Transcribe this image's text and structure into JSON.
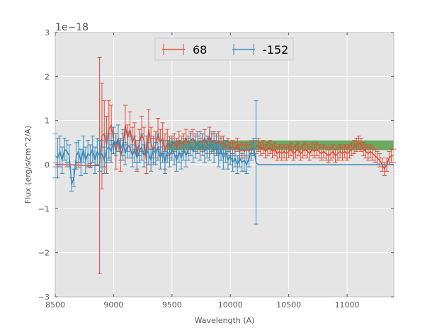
{
  "chart_data": {
    "type": "line",
    "title": "",
    "xlabel": "Wavelength (A)",
    "ylabel": "Flux (erg/s/cm^2/A)",
    "y_exponent_label": "1e−18",
    "xlim": [
      8500,
      11400
    ],
    "ylim": [
      -3,
      3
    ],
    "x_ticks": [
      8500,
      9000,
      9500,
      10000,
      10500,
      11000
    ],
    "x_tick_labels": [
      "8500",
      "9000",
      "9500",
      "10000",
      "10500",
      "11000"
    ],
    "y_ticks": [
      -3,
      -2,
      -1,
      0,
      1,
      2,
      3
    ],
    "y_tick_labels": [
      "−3",
      "−2",
      "−1",
      "0",
      "1",
      "2",
      "3"
    ],
    "grid": true,
    "legend_position": "upper-center",
    "band": {
      "x": [
        9460,
        11400
      ],
      "y": [
        0.33,
        0.55
      ],
      "color": "#4a9a3f"
    },
    "series": [
      {
        "name": "68",
        "color": "#e24a33",
        "points": [
          [
            8500,
            0.0,
            0.05
          ],
          [
            8600,
            0.0,
            0.05
          ],
          [
            8700,
            -0.01,
            0.05
          ],
          [
            8800,
            -0.02,
            0.05
          ],
          [
            8880,
            -0.02,
            2.45
          ],
          [
            8900,
            0.65,
            1.2
          ],
          [
            8920,
            0.7,
            0.75
          ],
          [
            8940,
            0.45,
            0.65
          ],
          [
            8960,
            0.8,
            0.65
          ],
          [
            8980,
            0.9,
            0.45
          ],
          [
            9000,
            0.55,
            0.3
          ],
          [
            9020,
            0.3,
            0.4
          ],
          [
            9040,
            0.6,
            0.3
          ],
          [
            9060,
            0.2,
            0.35
          ],
          [
            9080,
            0.4,
            0.3
          ],
          [
            9100,
            0.9,
            0.45
          ],
          [
            9120,
            0.6,
            0.3
          ],
          [
            9140,
            0.8,
            0.4
          ],
          [
            9160,
            0.5,
            0.35
          ],
          [
            9180,
            0.65,
            0.3
          ],
          [
            9200,
            0.2,
            0.35
          ],
          [
            9220,
            0.5,
            0.3
          ],
          [
            9240,
            0.7,
            0.4
          ],
          [
            9260,
            0.55,
            0.3
          ],
          [
            9280,
            0.1,
            0.3
          ],
          [
            9300,
            0.8,
            0.45
          ],
          [
            9320,
            0.5,
            0.35
          ],
          [
            9340,
            0.3,
            0.3
          ],
          [
            9360,
            0.45,
            0.3
          ],
          [
            9380,
            0.7,
            0.35
          ],
          [
            9400,
            0.5,
            0.3
          ],
          [
            9420,
            0.6,
            0.35
          ],
          [
            9440,
            0.3,
            0.4
          ],
          [
            9460,
            0.5,
            0.3
          ],
          [
            9480,
            0.4,
            0.25
          ],
          [
            9500,
            0.45,
            0.2
          ],
          [
            9520,
            0.5,
            0.2
          ],
          [
            9540,
            0.4,
            0.2
          ],
          [
            9560,
            0.55,
            0.2
          ],
          [
            9580,
            0.45,
            0.2
          ],
          [
            9600,
            0.5,
            0.2
          ],
          [
            9620,
            0.6,
            0.2
          ],
          [
            9640,
            0.45,
            0.2
          ],
          [
            9660,
            0.55,
            0.2
          ],
          [
            9680,
            0.6,
            0.2
          ],
          [
            9700,
            0.5,
            0.2
          ],
          [
            9720,
            0.45,
            0.2
          ],
          [
            9740,
            0.55,
            0.2
          ],
          [
            9760,
            0.5,
            0.2
          ],
          [
            9780,
            0.6,
            0.2
          ],
          [
            9800,
            0.45,
            0.2
          ],
          [
            9820,
            0.65,
            0.2
          ],
          [
            9840,
            0.5,
            0.2
          ],
          [
            9860,
            0.55,
            0.2
          ],
          [
            9880,
            0.45,
            0.2
          ],
          [
            9900,
            0.55,
            0.2
          ],
          [
            9920,
            0.45,
            0.2
          ],
          [
            9940,
            0.5,
            0.15
          ],
          [
            9960,
            0.4,
            0.15
          ],
          [
            9980,
            0.45,
            0.15
          ],
          [
            10000,
            0.35,
            0.15
          ],
          [
            10020,
            0.4,
            0.15
          ],
          [
            10040,
            0.35,
            0.15
          ],
          [
            10060,
            0.45,
            0.15
          ],
          [
            10080,
            0.3,
            0.15
          ],
          [
            10100,
            0.35,
            0.15
          ],
          [
            10120,
            0.3,
            0.15
          ],
          [
            10140,
            0.35,
            0.15
          ],
          [
            10160,
            0.3,
            0.15
          ],
          [
            10180,
            0.4,
            0.15
          ],
          [
            10200,
            0.35,
            0.15
          ],
          [
            10220,
            0.4,
            0.15
          ],
          [
            10240,
            0.45,
            0.15
          ],
          [
            10260,
            0.35,
            0.15
          ],
          [
            10280,
            0.4,
            0.15
          ],
          [
            10300,
            0.3,
            0.15
          ],
          [
            10320,
            0.35,
            0.15
          ],
          [
            10340,
            0.4,
            0.15
          ],
          [
            10360,
            0.3,
            0.15
          ],
          [
            10380,
            0.35,
            0.15
          ],
          [
            10400,
            0.25,
            0.15
          ],
          [
            10420,
            0.3,
            0.15
          ],
          [
            10440,
            0.25,
            0.15
          ],
          [
            10460,
            0.3,
            0.15
          ],
          [
            10480,
            0.25,
            0.15
          ],
          [
            10500,
            0.3,
            0.15
          ],
          [
            10520,
            0.35,
            0.15
          ],
          [
            10540,
            0.25,
            0.15
          ],
          [
            10560,
            0.3,
            0.15
          ],
          [
            10580,
            0.35,
            0.15
          ],
          [
            10600,
            0.25,
            0.15
          ],
          [
            10620,
            0.3,
            0.15
          ],
          [
            10640,
            0.35,
            0.15
          ],
          [
            10660,
            0.3,
            0.15
          ],
          [
            10680,
            0.25,
            0.15
          ],
          [
            10700,
            0.35,
            0.15
          ],
          [
            10720,
            0.3,
            0.15
          ],
          [
            10740,
            0.35,
            0.15
          ],
          [
            10760,
            0.3,
            0.15
          ],
          [
            10780,
            0.25,
            0.15
          ],
          [
            10800,
            0.3,
            0.15
          ],
          [
            10820,
            0.25,
            0.15
          ],
          [
            10840,
            0.2,
            0.15
          ],
          [
            10860,
            0.25,
            0.15
          ],
          [
            10880,
            0.3,
            0.15
          ],
          [
            10900,
            0.2,
            0.15
          ],
          [
            10920,
            0.25,
            0.15
          ],
          [
            10940,
            0.3,
            0.15
          ],
          [
            10960,
            0.25,
            0.15
          ],
          [
            10980,
            0.3,
            0.15
          ],
          [
            11000,
            0.25,
            0.15
          ],
          [
            11020,
            0.3,
            0.15
          ],
          [
            11040,
            0.35,
            0.15
          ],
          [
            11060,
            0.4,
            0.15
          ],
          [
            11080,
            0.45,
            0.15
          ],
          [
            11100,
            0.5,
            0.15
          ],
          [
            11120,
            0.45,
            0.15
          ],
          [
            11140,
            0.35,
            0.15
          ],
          [
            11160,
            0.3,
            0.15
          ],
          [
            11180,
            0.25,
            0.15
          ],
          [
            11200,
            0.3,
            0.15
          ],
          [
            11220,
            0.25,
            0.15
          ],
          [
            11240,
            0.2,
            0.15
          ],
          [
            11260,
            0.15,
            0.15
          ],
          [
            11280,
            0.1,
            0.15
          ],
          [
            11300,
            0.0,
            0.15
          ],
          [
            11320,
            -0.1,
            0.15
          ],
          [
            11340,
            0.0,
            0.15
          ],
          [
            11360,
            0.15,
            0.15
          ],
          [
            11380,
            0.2,
            0.15
          ],
          [
            11400,
            0.2,
            0.15
          ]
        ]
      },
      {
        "name": "-152",
        "color": "#348abd",
        "points": [
          [
            8500,
            0.2,
            0.5
          ],
          [
            8520,
            0.15,
            0.45
          ],
          [
            8540,
            0.3,
            0.35
          ],
          [
            8560,
            0.1,
            0.3
          ],
          [
            8580,
            0.35,
            0.25
          ],
          [
            8600,
            0.3,
            0.25
          ],
          [
            8620,
            0.2,
            0.25
          ],
          [
            8640,
            -0.45,
            0.15
          ],
          [
            8660,
            -0.3,
            0.2
          ],
          [
            8680,
            0.2,
            0.3
          ],
          [
            8700,
            0.3,
            0.25
          ],
          [
            8720,
            0.05,
            0.3
          ],
          [
            8740,
            0.35,
            0.3
          ],
          [
            8760,
            0.1,
            0.3
          ],
          [
            8780,
            0.25,
            0.3
          ],
          [
            8800,
            0.2,
            0.25
          ],
          [
            8820,
            0.35,
            0.3
          ],
          [
            8840,
            0.1,
            0.3
          ],
          [
            8860,
            0.3,
            0.3
          ],
          [
            8880,
            0.2,
            0.35
          ],
          [
            8900,
            0.25,
            0.3
          ],
          [
            8920,
            0.1,
            0.3
          ],
          [
            8940,
            0.35,
            0.3
          ],
          [
            8960,
            0.4,
            0.3
          ],
          [
            8980,
            0.3,
            0.25
          ],
          [
            9000,
            0.55,
            0.3
          ],
          [
            9020,
            0.45,
            0.25
          ],
          [
            9040,
            0.6,
            0.3
          ],
          [
            9060,
            0.35,
            0.25
          ],
          [
            9080,
            0.5,
            0.3
          ],
          [
            9100,
            0.25,
            0.25
          ],
          [
            9120,
            0.45,
            0.3
          ],
          [
            9140,
            0.4,
            0.25
          ],
          [
            9160,
            0.2,
            0.25
          ],
          [
            9180,
            0.35,
            0.3
          ],
          [
            9200,
            0.15,
            0.25
          ],
          [
            9220,
            0.3,
            0.25
          ],
          [
            9240,
            0.4,
            0.3
          ],
          [
            9260,
            0.2,
            0.25
          ],
          [
            9280,
            0.35,
            0.3
          ],
          [
            9300,
            0.25,
            0.25
          ],
          [
            9320,
            0.1,
            0.25
          ],
          [
            9340,
            0.35,
            0.3
          ],
          [
            9360,
            0.25,
            0.25
          ],
          [
            9380,
            0.4,
            0.3
          ],
          [
            9400,
            0.15,
            0.25
          ],
          [
            9420,
            0.3,
            0.25
          ],
          [
            9440,
            0.05,
            0.25
          ],
          [
            9460,
            0.3,
            0.25
          ],
          [
            9480,
            0.2,
            0.25
          ],
          [
            9500,
            0.35,
            0.25
          ],
          [
            9520,
            0.25,
            0.25
          ],
          [
            9540,
            0.1,
            0.25
          ],
          [
            9560,
            0.3,
            0.25
          ],
          [
            9580,
            0.15,
            0.25
          ],
          [
            9600,
            0.35,
            0.25
          ],
          [
            9620,
            0.2,
            0.25
          ],
          [
            9640,
            0.35,
            0.25
          ],
          [
            9660,
            0.45,
            0.25
          ],
          [
            9680,
            0.3,
            0.25
          ],
          [
            9700,
            0.4,
            0.25
          ],
          [
            9720,
            0.5,
            0.25
          ],
          [
            9740,
            0.35,
            0.25
          ],
          [
            9760,
            0.45,
            0.25
          ],
          [
            9780,
            0.3,
            0.25
          ],
          [
            9800,
            0.4,
            0.25
          ],
          [
            9820,
            0.35,
            0.25
          ],
          [
            9840,
            0.5,
            0.25
          ],
          [
            9860,
            0.3,
            0.25
          ],
          [
            9880,
            0.45,
            0.25
          ],
          [
            9900,
            0.2,
            0.25
          ],
          [
            9920,
            0.35,
            0.25
          ],
          [
            9940,
            0.15,
            0.25
          ],
          [
            9960,
            0.3,
            0.25
          ],
          [
            9980,
            0.1,
            0.2
          ],
          [
            10000,
            0.2,
            0.2
          ],
          [
            10020,
            0.05,
            0.2
          ],
          [
            10040,
            0.15,
            0.2
          ],
          [
            10060,
            0.0,
            0.2
          ],
          [
            10080,
            0.15,
            0.2
          ],
          [
            10100,
            0.05,
            0.2
          ],
          [
            10120,
            0.1,
            0.25
          ],
          [
            10140,
            0.0,
            0.2
          ],
          [
            10160,
            0.15,
            0.2
          ],
          [
            10180,
            0.3,
            0.2
          ],
          [
            10200,
            0.4,
            0.2
          ],
          [
            10220,
            0.05,
            1.4
          ],
          [
            10240,
            0.0,
            0.02
          ],
          [
            10300,
            0.0,
            0.02
          ],
          [
            10400,
            0.0,
            0.02
          ],
          [
            10500,
            0.0,
            0.02
          ],
          [
            10600,
            0.0,
            0.02
          ],
          [
            10700,
            0.0,
            0.02
          ],
          [
            10800,
            0.0,
            0.02
          ],
          [
            10900,
            0.0,
            0.02
          ],
          [
            11000,
            0.0,
            0.02
          ],
          [
            11100,
            0.0,
            0.02
          ],
          [
            11200,
            0.0,
            0.02
          ],
          [
            11300,
            0.0,
            0.02
          ],
          [
            11400,
            0.0,
            0.02
          ]
        ]
      }
    ]
  }
}
